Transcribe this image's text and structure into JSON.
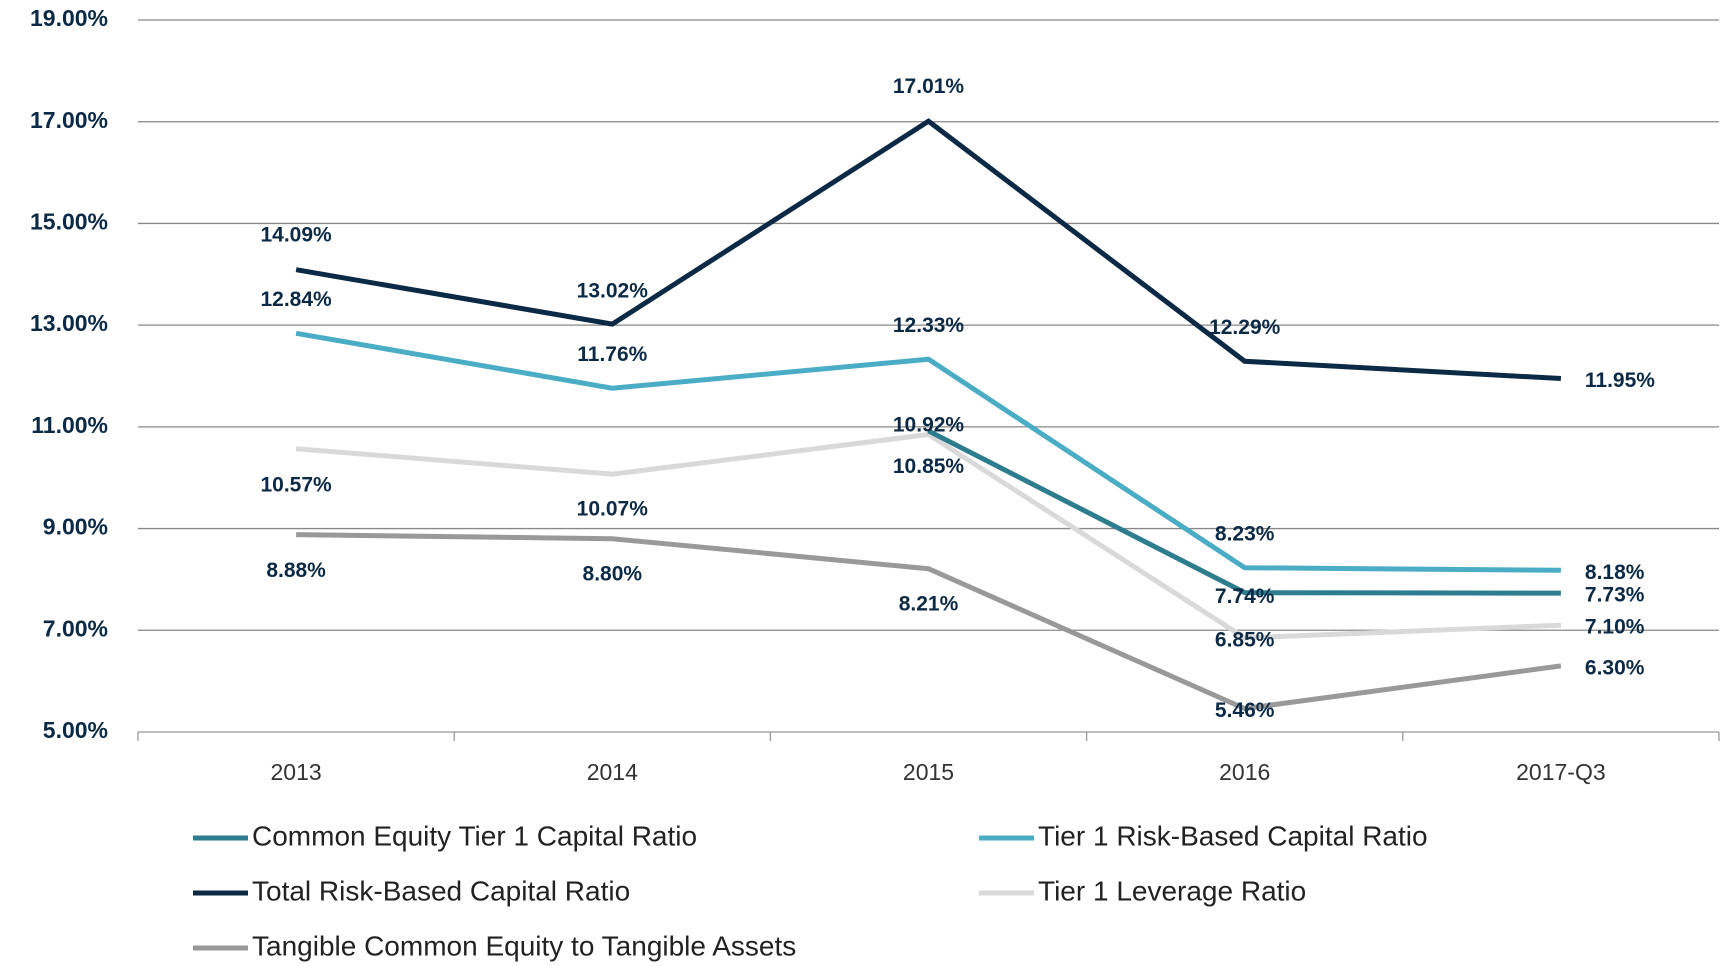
{
  "chart_data": {
    "type": "line",
    "categories": [
      "2013",
      "2014",
      "2015",
      "2016",
      "2017-Q3"
    ],
    "series": [
      {
        "name": "Common Equity Tier 1 Capital Ratio",
        "color": "#2e7d8f",
        "values": [
          null,
          null,
          10.92,
          7.74,
          7.73
        ],
        "value_labels": [
          null,
          null,
          "10.92%",
          "7.74%",
          "7.73%"
        ]
      },
      {
        "name": "Tier 1 Risk-Based Capital Ratio",
        "color": "#4bacc6",
        "values": [
          12.84,
          11.76,
          12.33,
          8.23,
          8.18
        ],
        "value_labels": [
          "12.84%",
          "11.76%",
          "12.33%",
          "8.23%",
          "8.18%"
        ]
      },
      {
        "name": "Total Risk-Based Capital Ratio",
        "color": "#0c2a45",
        "values": [
          14.09,
          13.02,
          17.01,
          12.29,
          11.95
        ],
        "value_labels": [
          "14.09%",
          "13.02%",
          "17.01%",
          "12.29%",
          "11.95%"
        ]
      },
      {
        "name": "Tier 1 Leverage Ratio",
        "color": "#d9d9d9",
        "values": [
          10.57,
          10.07,
          10.85,
          6.85,
          7.1
        ],
        "value_labels": [
          "10.57%",
          "10.07%",
          "10.85%",
          "6.85%",
          "7.10%"
        ]
      },
      {
        "name": "Tangible Common Equity to Tangible Assets",
        "color": "#999999",
        "values": [
          8.88,
          8.8,
          8.21,
          5.46,
          6.3
        ],
        "value_labels": [
          "8.88%",
          "8.80%",
          "8.21%",
          "5.46%",
          "6.30%"
        ]
      }
    ],
    "ylim": [
      5,
      19
    ],
    "yticks": [
      {
        "value": 5,
        "label": "5.00%"
      },
      {
        "value": 7,
        "label": "7.00%"
      },
      {
        "value": 9,
        "label": "9.00%"
      },
      {
        "value": 11,
        "label": "11.00%"
      },
      {
        "value": 13,
        "label": "13.00%"
      },
      {
        "value": 15,
        "label": "15.00%"
      },
      {
        "value": 17,
        "label": "17.00%"
      },
      {
        "value": 19,
        "label": "19.00%"
      }
    ],
    "grid": true,
    "legend": "bottom"
  }
}
